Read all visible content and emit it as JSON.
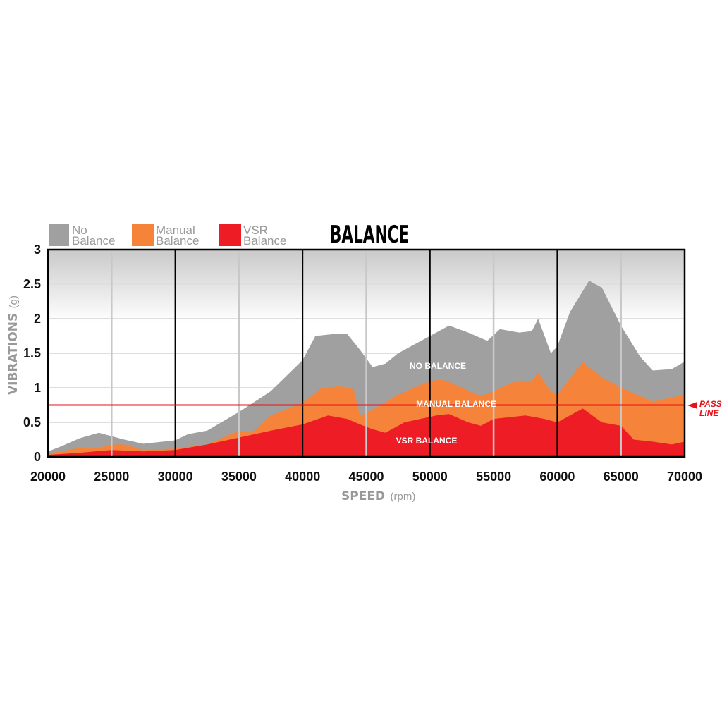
{
  "chart_data": {
    "type": "area",
    "title": "BALANCE",
    "xlabel": "SPEED",
    "xlabel_unit": "(rpm)",
    "ylabel": "VIBRATIONS",
    "ylabel_unit": "(g)",
    "xlim": [
      20000,
      70000
    ],
    "ylim": [
      0,
      3
    ],
    "xticks": [
      "20000",
      "25000",
      "30000",
      "35000",
      "40000",
      "45000",
      "50000",
      "55000",
      "60000",
      "65000",
      "70000"
    ],
    "yticks": [
      "0",
      "0.5",
      "1",
      "1.5",
      "2",
      "2.5",
      "3"
    ],
    "grid": true,
    "legend_position": "top-left",
    "pass_line": {
      "value": 0.75,
      "label_line1": "PASS",
      "label_line2": "LINE",
      "color": "#e8101a"
    },
    "series": [
      {
        "name": "No Balance",
        "legend_line1": "No",
        "legend_line2": "Balance",
        "area_label": "NO BALANCE",
        "color": "#a0a0a0",
        "x": [
          20000,
          21000,
          22500,
          24000,
          25000,
          26000,
          27500,
          30000,
          31000,
          32500,
          35000,
          37500,
          40000,
          41000,
          42500,
          43500,
          44500,
          45500,
          46500,
          47500,
          50000,
          51500,
          53000,
          54500,
          55500,
          57000,
          58000,
          58500,
          59500,
          60000,
          61000,
          62500,
          63500,
          65000,
          66500,
          67500,
          69000,
          70000
        ],
        "y": [
          0.08,
          0.15,
          0.27,
          0.35,
          0.3,
          0.25,
          0.19,
          0.24,
          0.33,
          0.38,
          0.65,
          0.95,
          1.4,
          1.75,
          1.78,
          1.78,
          1.55,
          1.3,
          1.35,
          1.5,
          1.75,
          1.9,
          1.8,
          1.68,
          1.85,
          1.8,
          1.82,
          2.0,
          1.5,
          1.6,
          2.1,
          2.55,
          2.45,
          1.9,
          1.45,
          1.25,
          1.27,
          1.38
        ]
      },
      {
        "name": "Manual Balance",
        "legend_line1": "Manual",
        "legend_line2": "Balance",
        "area_label": "MANUAL BALANCE",
        "color": "#f5843a",
        "x": [
          20000,
          22500,
          24000,
          25000,
          26000,
          27500,
          30000,
          32500,
          34000,
          35000,
          36000,
          37500,
          40000,
          41500,
          43000,
          44000,
          44500,
          45500,
          47500,
          50000,
          51000,
          52500,
          54000,
          55000,
          56500,
          58000,
          58500,
          59500,
          60000,
          62000,
          63500,
          65000,
          67500,
          70000
        ],
        "y": [
          0.05,
          0.13,
          0.13,
          0.18,
          0.18,
          0.1,
          0.12,
          0.18,
          0.3,
          0.38,
          0.35,
          0.6,
          0.78,
          1.0,
          1.02,
          0.98,
          0.6,
          0.68,
          0.9,
          1.1,
          1.12,
          1.0,
          0.88,
          0.95,
          1.08,
          1.1,
          1.22,
          0.95,
          0.9,
          1.37,
          1.15,
          1.0,
          0.8,
          0.9
        ]
      },
      {
        "name": "VSR Balance",
        "legend_line1": "VSR",
        "legend_line2": "Balance",
        "area_label": "VSR BALANCE",
        "color": "#ee1c25",
        "x": [
          20000,
          22500,
          25000,
          27500,
          30000,
          32500,
          35000,
          37500,
          40000,
          42000,
          43500,
          44500,
          45500,
          46500,
          48000,
          50500,
          51500,
          53000,
          54000,
          55000,
          57500,
          59000,
          60000,
          61500,
          62000,
          63500,
          65000,
          66000,
          67500,
          69000,
          70000
        ],
        "y": [
          0.03,
          0.06,
          0.1,
          0.08,
          0.1,
          0.18,
          0.28,
          0.38,
          0.47,
          0.6,
          0.55,
          0.47,
          0.4,
          0.35,
          0.5,
          0.6,
          0.62,
          0.5,
          0.45,
          0.55,
          0.6,
          0.55,
          0.5,
          0.65,
          0.7,
          0.5,
          0.45,
          0.25,
          0.22,
          0.18,
          0.22
        ]
      }
    ]
  }
}
